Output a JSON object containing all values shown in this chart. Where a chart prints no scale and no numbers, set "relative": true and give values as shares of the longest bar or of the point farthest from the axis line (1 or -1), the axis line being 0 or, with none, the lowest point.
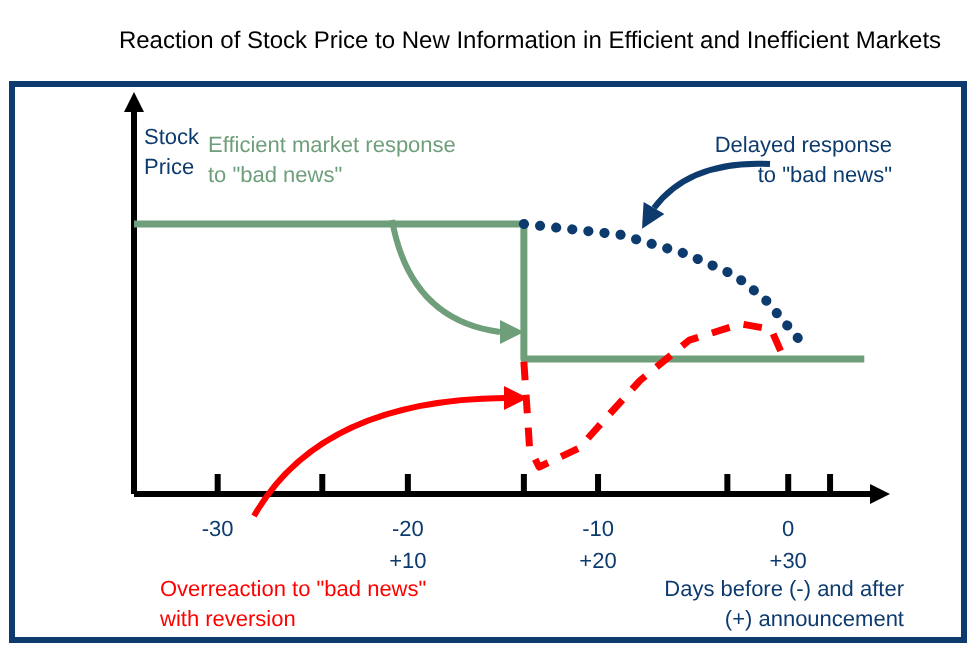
{
  "chart_data": {
    "type": "line",
    "title": "Reaction of Stock Price to New Information in Efficient and Inefficient Markets",
    "ylabel": "Stock Price",
    "xlabel": "Days before (-) and after (+) announcement",
    "relative": true,
    "legend": false,
    "marker": "none",
    "xlim": [
      -34.4,
      4.3
    ],
    "xticks": [
      -30,
      -20,
      -10,
      0,
      {
        "value": -24.5,
        "label": null
      },
      {
        "value": -13.9,
        "label": null
      },
      {
        "value": -3.2,
        "label": null
      },
      {
        "value": 2.2,
        "label": null
      }
    ],
    "x2lim": [
      -4.4,
      34.3
    ],
    "x2ticks": [
      {
        "value": 10,
        "label": "+10"
      },
      {
        "value": 20,
        "label": "+20"
      },
      {
        "value": 30,
        "label": "+30"
      }
    ],
    "series": [
      {
        "name": "Efficient market response to \"bad news\"",
        "color": "#6f9f7a",
        "line_style": "solid",
        "x": [
          -34.4,
          -13.9,
          -13.9,
          4.0
        ],
        "values": [
          1,
          1,
          0.5,
          0.5
        ]
      },
      {
        "name": "Delayed response to \"bad news\"",
        "color": "#0d3b6e",
        "line_style": "dotted",
        "x": [
          -13.9,
          -8.8,
          -5.4,
          -2.8,
          -1.2,
          0.6
        ],
        "values": [
          1,
          0.96,
          0.89,
          0.81,
          0.72,
          0.57
        ]
      },
      {
        "name": "Overreaction to \"bad news\" with reversion",
        "color": "#ff0000",
        "line_style": "dashed",
        "x": [
          -13.9,
          -13.6,
          -13.1,
          -11.0,
          -7.8,
          -5.2,
          -2.5,
          -0.9,
          -0.4
        ],
        "values": [
          0.49,
          0.17,
          0.1,
          0.17,
          0.42,
          0.57,
          0.63,
          0.61,
          0.53
        ]
      }
    ]
  }
}
